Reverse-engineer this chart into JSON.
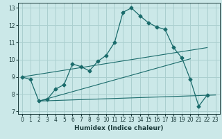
{
  "xlabel": "Humidex (Indice chaleur)",
  "background_color": "#cbe8e8",
  "grid_color": "#aacfcf",
  "line_color": "#1a6b6b",
  "xlim": [
    -0.5,
    23.5
  ],
  "ylim": [
    6.85,
    13.3
  ],
  "xticks": [
    0,
    1,
    2,
    3,
    4,
    5,
    6,
    7,
    8,
    9,
    10,
    11,
    12,
    13,
    14,
    15,
    16,
    17,
    18,
    19,
    20,
    21,
    22,
    23
  ],
  "yticks": [
    7,
    8,
    9,
    10,
    11,
    12,
    13
  ],
  "series": {
    "main": {
      "x": [
        0,
        1,
        2,
        3,
        4,
        5,
        6,
        7,
        8,
        9,
        10,
        11,
        12,
        13,
        14,
        15,
        16,
        17,
        18,
        19,
        20,
        21,
        22
      ],
      "y": [
        9.0,
        8.85,
        7.6,
        7.7,
        8.3,
        8.55,
        9.75,
        9.6,
        9.35,
        9.9,
        10.25,
        11.0,
        12.75,
        13.0,
        12.55,
        12.15,
        11.9,
        11.75,
        10.7,
        10.1,
        8.85,
        7.3,
        7.95
      ]
    },
    "line1": {
      "x": [
        0,
        22
      ],
      "y": [
        9.0,
        10.7
      ]
    },
    "line2": {
      "x": [
        2,
        20
      ],
      "y": [
        7.6,
        10.05
      ]
    },
    "line3": {
      "x": [
        2,
        23
      ],
      "y": [
        7.6,
        7.95
      ]
    }
  }
}
